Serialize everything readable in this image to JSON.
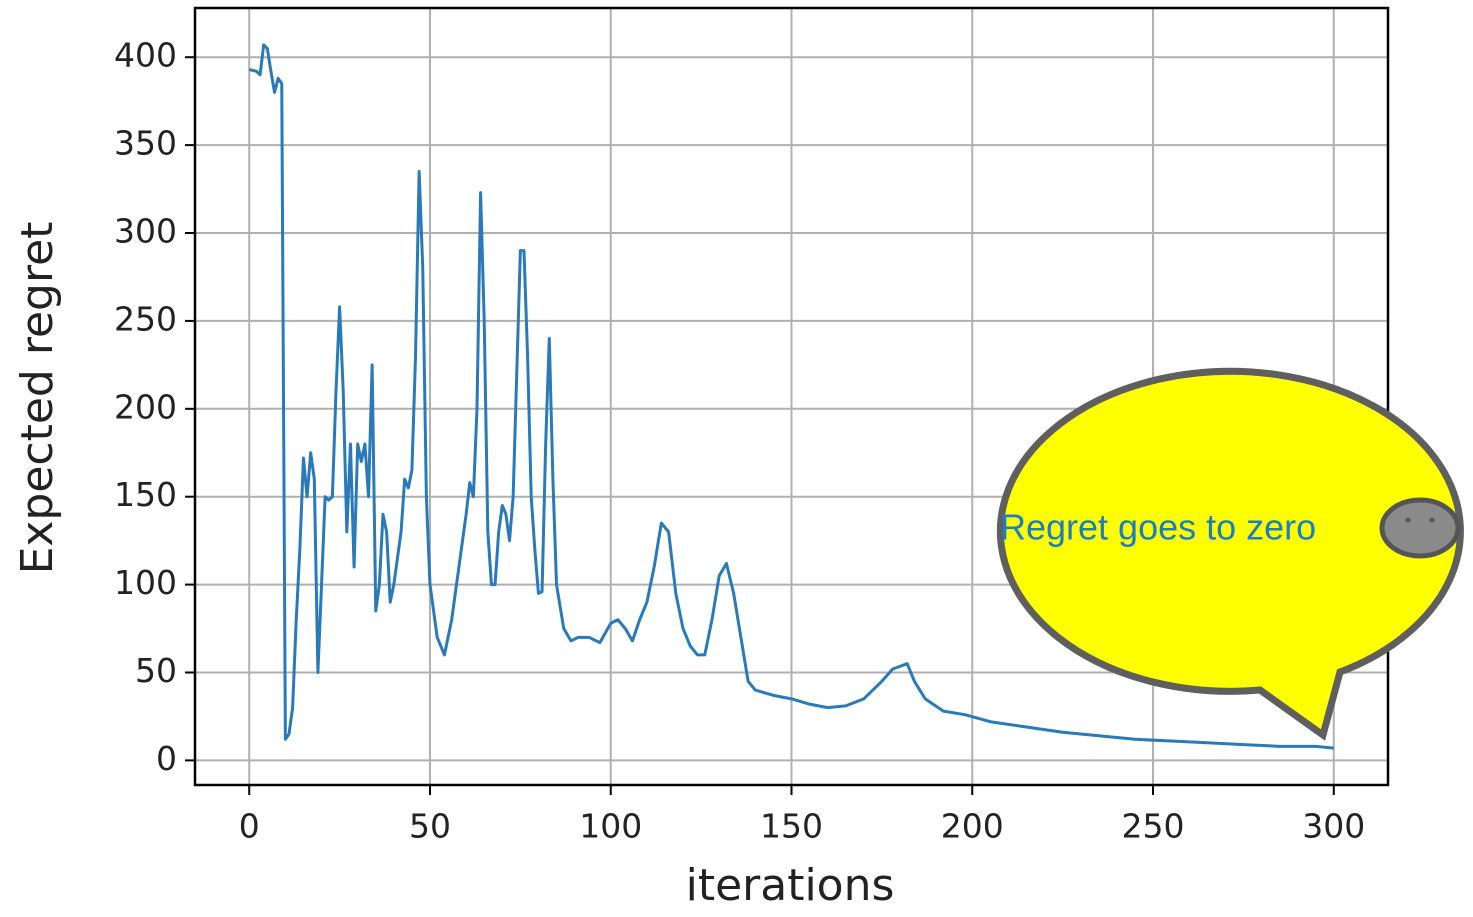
{
  "chart_data": {
    "type": "line",
    "xlabel": "iterations",
    "ylabel": "Expected regret",
    "annotation": "Regret goes to zero",
    "x": [
      0,
      2,
      3,
      4,
      5,
      6,
      7,
      8,
      9,
      10,
      11,
      12,
      13,
      14,
      15,
      16,
      17,
      18,
      19,
      20,
      21,
      22,
      23,
      24,
      25,
      26,
      27,
      28,
      29,
      30,
      31,
      32,
      33,
      34,
      35,
      36,
      37,
      38,
      39,
      40,
      41,
      42,
      43,
      44,
      45,
      46,
      47,
      48,
      49,
      50,
      52,
      54,
      56,
      58,
      60,
      61,
      62,
      63,
      64,
      65,
      66,
      67,
      68,
      69,
      70,
      71,
      72,
      73,
      74,
      75,
      76,
      77,
      78,
      79,
      80,
      81,
      82,
      83,
      84,
      85,
      87,
      89,
      91,
      94,
      97,
      100,
      102,
      104,
      106,
      108,
      110,
      112,
      114,
      116,
      118,
      120,
      122,
      124,
      126,
      128,
      130,
      132,
      134,
      136,
      138,
      140,
      145,
      150,
      155,
      160,
      165,
      170,
      175,
      178,
      182,
      184,
      187,
      192,
      198,
      205,
      215,
      225,
      235,
      245,
      255,
      265,
      275,
      285,
      295,
      300
    ],
    "color": "#2a7ab9",
    "values": [
      393,
      392,
      390,
      407,
      405,
      392,
      380,
      388,
      385,
      12,
      15,
      30,
      80,
      120,
      172,
      150,
      175,
      160,
      50,
      100,
      150,
      148,
      150,
      210,
      258,
      210,
      130,
      180,
      110,
      180,
      170,
      180,
      150,
      225,
      85,
      100,
      140,
      130,
      90,
      100,
      115,
      130,
      160,
      155,
      165,
      230,
      335,
      280,
      150,
      100,
      70,
      60,
      80,
      110,
      140,
      158,
      150,
      200,
      323,
      250,
      130,
      100,
      100,
      130,
      145,
      140,
      125,
      150,
      220,
      290,
      290,
      230,
      150,
      120,
      95,
      96,
      180,
      240,
      160,
      100,
      75,
      68,
      70,
      70,
      67,
      78,
      80,
      75,
      68,
      80,
      90,
      110,
      135,
      130,
      95,
      75,
      65,
      60,
      60,
      80,
      105,
      112,
      95,
      70,
      45,
      40,
      37,
      35,
      32,
      30,
      31,
      35,
      45,
      52,
      55,
      45,
      35,
      28,
      26,
      22,
      19,
      16,
      14,
      12,
      11,
      10,
      9,
      8,
      8,
      7
    ],
    "xlim": [
      -15,
      315
    ],
    "ylim": [
      -14,
      428
    ],
    "xticks": [
      0,
      50,
      100,
      150,
      200,
      250,
      300
    ],
    "yticks": [
      0,
      50,
      100,
      150,
      200,
      250,
      300,
      350,
      400
    ],
    "grid": true
  }
}
